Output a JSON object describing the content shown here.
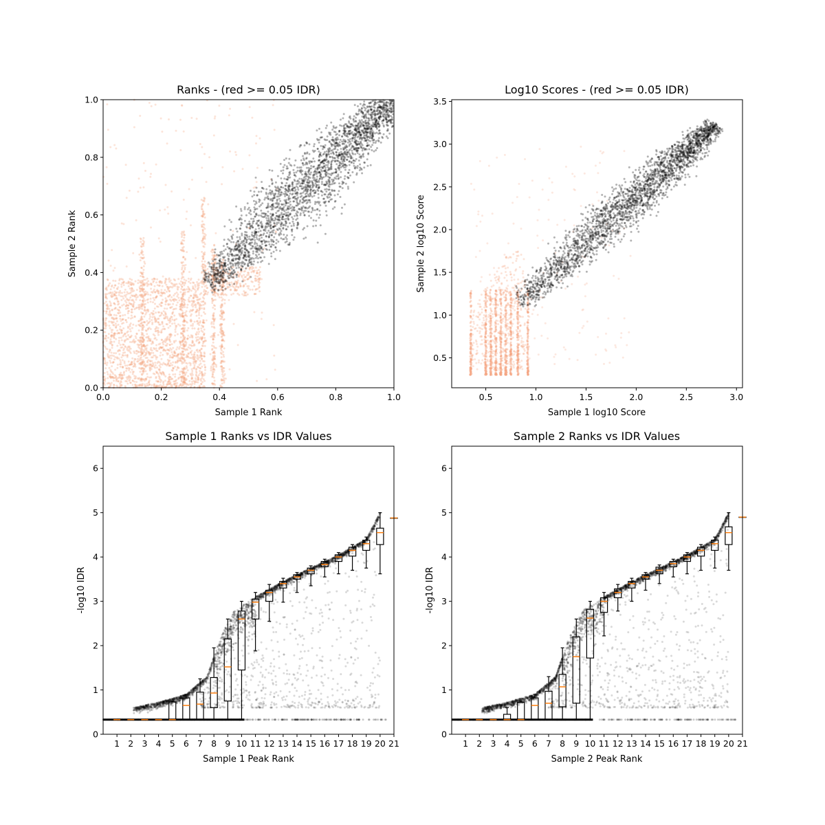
{
  "chart_data": [
    {
      "id": "ranks",
      "type": "scatter",
      "title": "Ranks - (red >= 0.05 IDR)",
      "xlabel": "Sample 1 Rank",
      "ylabel": "Sample 2 Rank",
      "xlim": [
        0,
        1
      ],
      "ylim": [
        0,
        1
      ],
      "xticks": [
        "0.0",
        "0.2",
        "0.4",
        "0.6",
        "0.8",
        "1.0"
      ],
      "yticks": [
        "0.0",
        "0.2",
        "0.4",
        "0.6",
        "0.8",
        "1.0"
      ],
      "series": [
        {
          "role": "above_threshold",
          "color": "#f4a582",
          "regions": [
            {
              "x": [
                0.0,
                0.3
              ],
              "y": [
                0.0,
                0.38
              ],
              "density": "high"
            },
            {
              "x": [
                0.12,
                0.16
              ],
              "y": [
                0.3,
                0.52
              ],
              "density": "medium"
            },
            {
              "x": [
                0.26,
                0.29
              ],
              "y": [
                0.3,
                0.52
              ],
              "density": "medium"
            },
            {
              "x": [
                0.32,
                0.36
              ],
              "y": [
                0.3,
                0.65
              ],
              "density": "medium"
            },
            {
              "x": [
                0.35,
                0.5
              ],
              "y": [
                0.3,
                0.42
              ],
              "density": "low"
            },
            {
              "x": [
                0.0,
                0.6
              ],
              "y": [
                0.0,
                1.0
              ],
              "density": "sparse"
            }
          ]
        },
        {
          "role": "below_threshold",
          "color": "#000000",
          "band": {
            "x_start": 0.36,
            "y_start": 0.36,
            "x_end": 1.0,
            "y_end": 1.0,
            "spread_start": 0.05,
            "spread_end": 0.18
          }
        }
      ]
    },
    {
      "id": "scores",
      "type": "scatter",
      "title": "Log10 Scores - (red >= 0.05 IDR)",
      "xlabel": "Sample 1 log10 Score",
      "ylabel": "Sample 2 log10 Score",
      "xlim": [
        0.16,
        3.06
      ],
      "ylim": [
        0.15,
        3.52
      ],
      "xticks": [
        0.5,
        1.0,
        1.5,
        2.0,
        2.5,
        3.0
      ],
      "yticks": [
        0.5,
        1.0,
        1.5,
        2.0,
        2.5,
        3.0,
        3.5
      ],
      "series": [
        {
          "role": "above_threshold",
          "color": "#f4a582",
          "columns_x": [
            0.35,
            0.5,
            0.55,
            0.6,
            0.65,
            0.7,
            0.75,
            0.82,
            0.92
          ],
          "column_y": [
            0.3,
            1.3
          ]
        },
        {
          "role": "below_threshold",
          "color": "#000000",
          "band": {
            "x_start": 0.82,
            "y_start": 1.05,
            "x_end": 2.8,
            "y_end": 3.15
          }
        }
      ]
    },
    {
      "id": "s1_idr",
      "type": "scatter+box",
      "title": "Sample 1 Ranks vs IDR Values",
      "xlabel": "Sample 1 Peak Rank",
      "ylabel": "-log10 IDR",
      "xlim": [
        0,
        21
      ],
      "ylim": [
        0,
        6.5
      ],
      "xticks": [
        "1",
        "2",
        "3",
        "4",
        "5",
        "6",
        "7",
        "8",
        "9",
        "10",
        "11",
        "12",
        "13",
        "14",
        "15",
        "16",
        "17",
        "18",
        "19",
        "20",
        "21"
      ],
      "yticks": [
        "0",
        "1",
        "2",
        "3",
        "4",
        "5",
        "6"
      ],
      "boxes": [
        {
          "pos": 1,
          "q1": 0.33,
          "med": 0.33,
          "q3": 0.33,
          "lo": 0.33,
          "hi": 0.33
        },
        {
          "pos": 2,
          "q1": 0.33,
          "med": 0.33,
          "q3": 0.33,
          "lo": 0.33,
          "hi": 0.33
        },
        {
          "pos": 3,
          "q1": 0.33,
          "med": 0.33,
          "q3": 0.33,
          "lo": 0.33,
          "hi": 0.33
        },
        {
          "pos": 4,
          "q1": 0.33,
          "med": 0.33,
          "q3": 0.33,
          "lo": 0.33,
          "hi": 0.33
        },
        {
          "pos": 5,
          "q1": 0.33,
          "med": 0.33,
          "q3": 0.73,
          "lo": 0.33,
          "hi": 0.75
        },
        {
          "pos": 6,
          "q1": 0.33,
          "med": 0.65,
          "q3": 0.82,
          "lo": 0.33,
          "hi": 0.9
        },
        {
          "pos": 7,
          "q1": 0.33,
          "med": 0.68,
          "q3": 0.95,
          "lo": 0.33,
          "hi": 1.25
        },
        {
          "pos": 8,
          "q1": 0.6,
          "med": 0.93,
          "q3": 1.28,
          "lo": 0.33,
          "hi": 1.95
        },
        {
          "pos": 9,
          "q1": 0.75,
          "med": 1.52,
          "q3": 2.15,
          "lo": 0.33,
          "hi": 2.6
        },
        {
          "pos": 10,
          "q1": 1.45,
          "med": 2.6,
          "q3": 2.78,
          "lo": 0.33,
          "hi": 3.0
        },
        {
          "pos": 11,
          "q1": 2.6,
          "med": 2.98,
          "q3": 3.05,
          "lo": 1.88,
          "hi": 3.2
        },
        {
          "pos": 12,
          "q1": 3.0,
          "med": 3.2,
          "q3": 3.25,
          "lo": 2.55,
          "hi": 3.38
        },
        {
          "pos": 13,
          "q1": 3.3,
          "med": 3.4,
          "q3": 3.45,
          "lo": 2.98,
          "hi": 3.52
        },
        {
          "pos": 14,
          "q1": 3.5,
          "med": 3.55,
          "q3": 3.6,
          "lo": 3.2,
          "hi": 3.65
        },
        {
          "pos": 15,
          "q1": 3.62,
          "med": 3.7,
          "q3": 3.75,
          "lo": 3.35,
          "hi": 3.8
        },
        {
          "pos": 16,
          "q1": 3.78,
          "med": 3.83,
          "q3": 3.9,
          "lo": 3.55,
          "hi": 3.95
        },
        {
          "pos": 17,
          "q1": 3.9,
          "med": 4.0,
          "q3": 4.05,
          "lo": 3.62,
          "hi": 4.1
        },
        {
          "pos": 18,
          "q1": 4.02,
          "med": 4.15,
          "q3": 4.22,
          "lo": 3.7,
          "hi": 4.28
        },
        {
          "pos": 19,
          "q1": 4.15,
          "med": 4.3,
          "q3": 4.38,
          "lo": 3.75,
          "hi": 4.45
        },
        {
          "pos": 20,
          "q1": 4.28,
          "med": 4.55,
          "q3": 4.65,
          "lo": 3.62,
          "hi": 5.0
        },
        {
          "pos": 21,
          "q1": 4.88,
          "med": 4.88,
          "q3": 4.88,
          "lo": 4.88,
          "hi": 4.88
        }
      ],
      "points_color": "#000000"
    },
    {
      "id": "s2_idr",
      "type": "scatter+box",
      "title": "Sample 2 Ranks vs IDR Values",
      "xlabel": "Sample 2 Peak Rank",
      "ylabel": "-log10 IDR",
      "xlim": [
        0,
        21
      ],
      "ylim": [
        0,
        6.5
      ],
      "xticks": [
        "1",
        "2",
        "3",
        "4",
        "5",
        "6",
        "7",
        "8",
        "9",
        "10",
        "11",
        "12",
        "13",
        "14",
        "15",
        "16",
        "17",
        "18",
        "19",
        "20",
        "21"
      ],
      "yticks": [
        "0",
        "1",
        "2",
        "3",
        "4",
        "5",
        "6"
      ],
      "boxes": [
        {
          "pos": 1,
          "q1": 0.33,
          "med": 0.33,
          "q3": 0.33,
          "lo": 0.33,
          "hi": 0.33
        },
        {
          "pos": 2,
          "q1": 0.33,
          "med": 0.33,
          "q3": 0.33,
          "lo": 0.33,
          "hi": 0.33
        },
        {
          "pos": 3,
          "q1": 0.33,
          "med": 0.33,
          "q3": 0.33,
          "lo": 0.33,
          "hi": 0.33
        },
        {
          "pos": 4,
          "q1": 0.33,
          "med": 0.33,
          "q3": 0.45,
          "lo": 0.33,
          "hi": 0.6
        },
        {
          "pos": 5,
          "q1": 0.33,
          "med": 0.33,
          "q3": 0.72,
          "lo": 0.33,
          "hi": 0.75
        },
        {
          "pos": 6,
          "q1": 0.33,
          "med": 0.65,
          "q3": 0.82,
          "lo": 0.33,
          "hi": 0.9
        },
        {
          "pos": 7,
          "q1": 0.33,
          "med": 0.7,
          "q3": 0.97,
          "lo": 0.33,
          "hi": 1.3
        },
        {
          "pos": 8,
          "q1": 0.62,
          "med": 1.07,
          "q3": 1.35,
          "lo": 0.33,
          "hi": 1.95
        },
        {
          "pos": 9,
          "q1": 0.7,
          "med": 1.75,
          "q3": 2.2,
          "lo": 0.33,
          "hi": 2.6
        },
        {
          "pos": 10,
          "q1": 1.72,
          "med": 2.62,
          "q3": 2.82,
          "lo": 0.33,
          "hi": 3.0
        },
        {
          "pos": 11,
          "q1": 2.75,
          "med": 3.0,
          "q3": 3.08,
          "lo": 2.22,
          "hi": 3.2
        },
        {
          "pos": 12,
          "q1": 3.08,
          "med": 3.2,
          "q3": 3.28,
          "lo": 2.78,
          "hi": 3.38
        },
        {
          "pos": 13,
          "q1": 3.3,
          "med": 3.4,
          "q3": 3.45,
          "lo": 3.0,
          "hi": 3.52
        },
        {
          "pos": 14,
          "q1": 3.5,
          "med": 3.55,
          "q3": 3.6,
          "lo": 3.25,
          "hi": 3.65
        },
        {
          "pos": 15,
          "q1": 3.62,
          "med": 3.7,
          "q3": 3.77,
          "lo": 3.4,
          "hi": 3.82
        },
        {
          "pos": 16,
          "q1": 3.78,
          "med": 3.85,
          "q3": 3.9,
          "lo": 3.55,
          "hi": 3.95
        },
        {
          "pos": 17,
          "q1": 3.9,
          "med": 4.0,
          "q3": 4.05,
          "lo": 3.62,
          "hi": 4.1
        },
        {
          "pos": 18,
          "q1": 4.02,
          "med": 4.15,
          "q3": 4.22,
          "lo": 3.7,
          "hi": 4.28
        },
        {
          "pos": 19,
          "q1": 4.15,
          "med": 4.3,
          "q3": 4.38,
          "lo": 3.75,
          "hi": 4.45
        },
        {
          "pos": 20,
          "q1": 4.28,
          "med": 4.55,
          "q3": 4.68,
          "lo": 3.7,
          "hi": 5.0
        },
        {
          "pos": 21,
          "q1": 4.9,
          "med": 4.9,
          "q3": 4.9,
          "lo": 4.9,
          "hi": 4.9
        }
      ],
      "points_color": "#000000"
    }
  ],
  "colors": {
    "threshold_fail": "#f4a582",
    "threshold_pass": "#000000",
    "median": "#ff7f0e",
    "axes": "#000000"
  }
}
